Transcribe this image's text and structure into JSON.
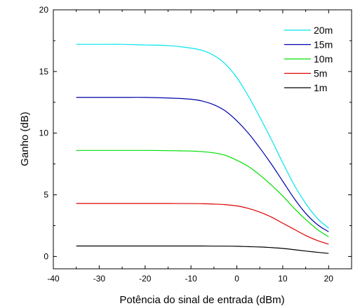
{
  "chart_data": {
    "type": "line",
    "title": "",
    "xlabel": "Potência do sinal de entrada (dBm)",
    "ylabel": "Ganho (dB)",
    "xlim": [
      -40,
      25
    ],
    "ylim": [
      -1,
      20
    ],
    "xticks": [
      -40,
      -30,
      -20,
      -10,
      0,
      10,
      20
    ],
    "yticks": [
      0,
      5,
      10,
      15,
      20
    ],
    "grid": false,
    "legend_position": "top-right",
    "x": [
      -35,
      -30,
      -25,
      -20,
      -15,
      -10,
      -7.5,
      -5,
      -2.5,
      0,
      2.5,
      5,
      7.5,
      10,
      12.5,
      15,
      17.5,
      20
    ],
    "series": [
      {
        "name": "20m",
        "color": "#00e5ee",
        "values": [
          17.2,
          17.2,
          17.2,
          17.15,
          17.1,
          16.9,
          16.7,
          16.3,
          15.6,
          14.5,
          13.0,
          11.3,
          9.5,
          7.6,
          5.8,
          4.3,
          3.1,
          2.3
        ]
      },
      {
        "name": "15m",
        "color": "#0000aa",
        "values": [
          12.9,
          12.9,
          12.9,
          12.9,
          12.85,
          12.75,
          12.6,
          12.3,
          11.8,
          11.0,
          10.0,
          8.8,
          7.5,
          6.1,
          4.7,
          3.5,
          2.6,
          2.0
        ]
      },
      {
        "name": "10m",
        "color": "#00dd00",
        "values": [
          8.6,
          8.6,
          8.6,
          8.6,
          8.58,
          8.55,
          8.5,
          8.4,
          8.2,
          7.8,
          7.3,
          6.6,
          5.8,
          4.9,
          3.9,
          3.0,
          2.2,
          1.6
        ]
      },
      {
        "name": "5m",
        "color": "#dd0000",
        "values": [
          4.3,
          4.3,
          4.3,
          4.3,
          4.3,
          4.29,
          4.28,
          4.25,
          4.2,
          4.1,
          3.9,
          3.6,
          3.2,
          2.7,
          2.2,
          1.7,
          1.3,
          1.0
        ]
      },
      {
        "name": "1m",
        "color": "#000000",
        "values": [
          0.85,
          0.85,
          0.85,
          0.85,
          0.85,
          0.85,
          0.85,
          0.84,
          0.84,
          0.83,
          0.8,
          0.77,
          0.72,
          0.65,
          0.55,
          0.44,
          0.34,
          0.25
        ]
      }
    ]
  }
}
